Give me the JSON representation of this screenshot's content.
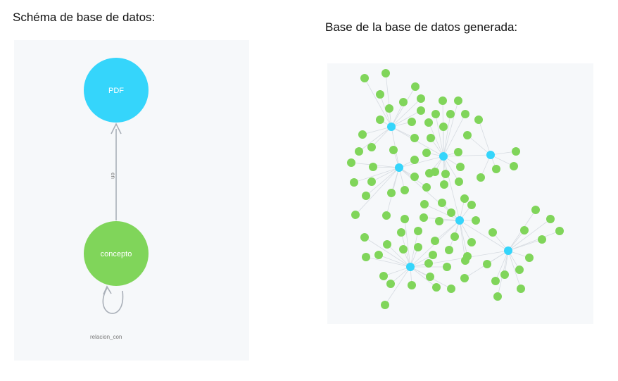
{
  "captions": {
    "schema": "Schéma de base de datos:",
    "generated": "Base de la base de datos generada:"
  },
  "schema": {
    "pdf_label": "PDF",
    "concept_label": "concepto",
    "rel_en_label": "en",
    "rel_self_label": "relacion_con",
    "colors": {
      "pdf": "#35d5fb",
      "concepto": "#80d55a",
      "edge": "#a9afb8"
    }
  },
  "graph": {
    "colors": {
      "pdf": "#35d5fb",
      "concepto": "#80d55a",
      "edge": "#d6dbe1"
    },
    "pdf_node_count": 7,
    "concept_node_count": 96
  }
}
